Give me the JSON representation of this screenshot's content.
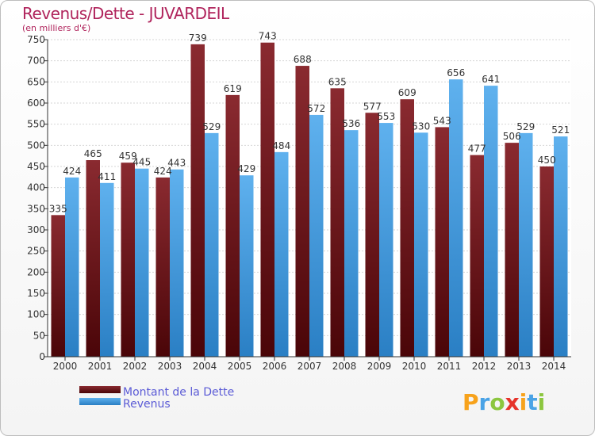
{
  "chart_data": {
    "type": "bar",
    "title": "Revenus/Dette - JUVARDEIL",
    "subtitle": "(en milliers d'€)",
    "categories": [
      "2000",
      "2001",
      "2002",
      "2003",
      "2004",
      "2005",
      "2006",
      "2007",
      "2008",
      "2009",
      "2010",
      "2011",
      "2012",
      "2013",
      "2014"
    ],
    "series": [
      {
        "name": "Montant de la Dette",
        "color": "#7a1c22",
        "values": [
          335,
          465,
          459,
          424,
          739,
          619,
          743,
          688,
          635,
          577,
          609,
          543,
          477,
          506,
          450
        ]
      },
      {
        "name": "Revenus",
        "color": "#4aa3e6",
        "values": [
          424,
          411,
          445,
          443,
          529,
          429,
          484,
          572,
          536,
          553,
          530,
          656,
          641,
          529,
          521
        ]
      }
    ],
    "ylim": [
      0,
      750
    ],
    "yticks": [
      0,
      50,
      100,
      150,
      200,
      250,
      300,
      350,
      400,
      450,
      500,
      550,
      600,
      650,
      700,
      750
    ],
    "grid": true,
    "legend_position": "bottom-left"
  },
  "logo": {
    "letters": [
      "P",
      "r",
      "o",
      "x",
      "i",
      "t",
      "i"
    ],
    "colors": [
      "#f7a21b",
      "#4aa3e6",
      "#8cc63f",
      "#e6332a",
      "#f7a21b",
      "#4aa3e6",
      "#8cc63f"
    ]
  }
}
